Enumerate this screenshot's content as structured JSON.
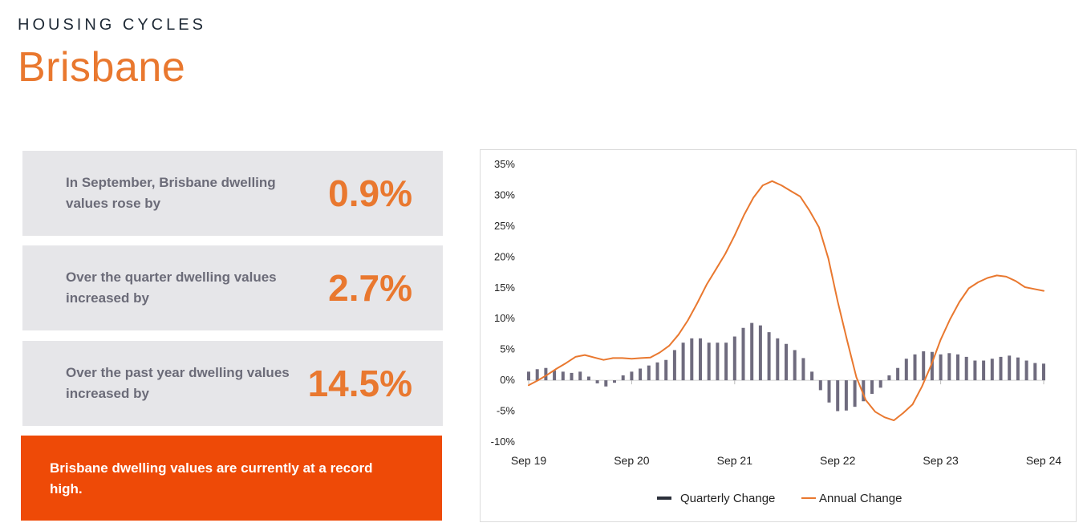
{
  "header": {
    "kicker": "HOUSING CYCLES",
    "city": "Brisbane"
  },
  "stats": [
    {
      "text": "In September, Brisbane dwelling values rose by",
      "value": "0.9%"
    },
    {
      "text": "Over the quarter dwelling values increased by",
      "value": "2.7%"
    },
    {
      "text": "Over the past year dwelling values increased by",
      "value": "14.5%"
    }
  ],
  "callout": "Brisbane dwelling values are currently at a record high.",
  "colors": {
    "accent": "#e9782f",
    "callout_bg": "#ee4a07",
    "card_bg": "#e6e6e9",
    "bar": "#6f6b7e",
    "line": "#e9782f"
  },
  "chart_data": {
    "type": "bar+line",
    "y_ticks": [
      "35%",
      "30%",
      "25%",
      "20%",
      "15%",
      "10%",
      "5%",
      "0%",
      "-5%",
      "-10%"
    ],
    "ylim": [
      -10,
      35
    ],
    "x_ticks": [
      "Sep 19",
      "Sep 20",
      "Sep 21",
      "Sep 22",
      "Sep 23",
      "Sep 24"
    ],
    "x_tick_index": [
      0,
      12,
      24,
      36,
      48,
      60
    ],
    "grid": false,
    "legend_position": "bottom-center",
    "series": [
      {
        "name": "Quarterly Change",
        "type": "bar",
        "values": [
          1.4,
          1.8,
          2.0,
          1.6,
          1.4,
          1.2,
          1.4,
          0.6,
          -0.5,
          -1.0,
          -0.4,
          0.8,
          1.4,
          1.9,
          2.4,
          2.9,
          3.3,
          4.9,
          6.1,
          6.8,
          6.8,
          6.1,
          6.1,
          6.1,
          7.1,
          8.5,
          9.3,
          8.9,
          7.8,
          6.8,
          5.9,
          4.9,
          3.6,
          1.4,
          -1.6,
          -3.6,
          -5.0,
          -4.9,
          -4.3,
          -3.4,
          -2.2,
          -1.2,
          0.8,
          2.0,
          3.5,
          4.2,
          4.7,
          4.6,
          4.2,
          4.4,
          4.2,
          3.8,
          3.2,
          3.2,
          3.5,
          3.8,
          4.0,
          3.7,
          3.2,
          2.8,
          2.7
        ]
      },
      {
        "name": "Annual Change",
        "type": "line",
        "values": [
          -0.8,
          0.0,
          0.9,
          1.9,
          2.8,
          3.8,
          4.1,
          3.7,
          3.3,
          3.6,
          3.6,
          3.5,
          3.6,
          3.7,
          4.5,
          5.6,
          7.4,
          9.7,
          12.5,
          15.5,
          18.0,
          20.5,
          23.5,
          26.8,
          29.6,
          31.6,
          32.3,
          31.6,
          30.7,
          29.8,
          27.5,
          24.8,
          19.8,
          12.8,
          6.5,
          0.5,
          -3.2,
          -5.1,
          -6.0,
          -6.5,
          -5.3,
          -3.9,
          -1.0,
          2.5,
          6.6,
          9.9,
          12.7,
          14.9,
          15.9,
          16.6,
          17.0,
          16.8,
          16.1,
          15.1,
          14.8,
          14.5
        ]
      }
    ]
  }
}
